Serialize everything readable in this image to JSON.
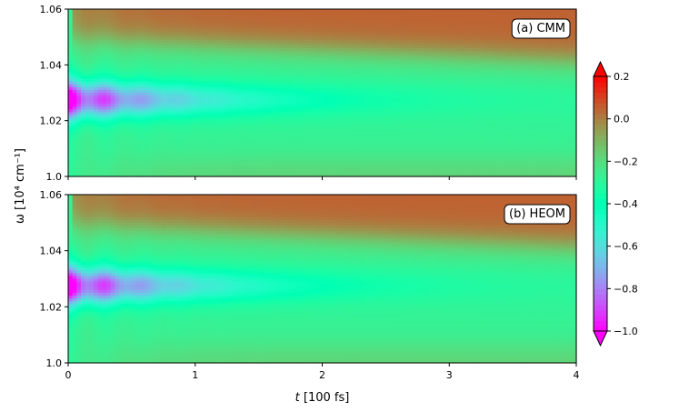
{
  "chart_data": {
    "type": "heatmap",
    "xlabel_var": "t",
    "xlabel_unit": " [100 fs]",
    "ylabel": "ω [10⁴ cm⁻¹]",
    "xlim": [
      0,
      4
    ],
    "ylim": [
      1.0,
      1.06
    ],
    "xticks": [
      0,
      1,
      2,
      3,
      4
    ],
    "xtick_labels": [
      "0",
      "1",
      "2",
      "3",
      "4"
    ],
    "yticks": [
      1.0,
      1.02,
      1.04,
      1.06
    ],
    "ytick_labels": [
      "1.0",
      "1.02",
      "1.04",
      "1.06"
    ],
    "colorbar": {
      "range": [
        -1.0,
        0.2
      ],
      "extend": "both",
      "colormap": "rainbow",
      "ticks": [
        -1.0,
        -0.8,
        -0.6,
        -0.4,
        -0.2,
        0.0,
        0.2
      ],
      "tick_labels": [
        "−1.0",
        "−0.8",
        "−0.6",
        "−0.4",
        "−0.2",
        "0.0",
        "0.2"
      ]
    },
    "panels": [
      {
        "label": "(a) CMM",
        "band_center_omega": 1.0275,
        "min_value": -1.0,
        "baseline_value": -0.28,
        "upper_region_value": 0.05
      },
      {
        "label": "(b) HEOM",
        "band_center_omega": 1.0275,
        "min_value": -1.0,
        "baseline_value": -0.28,
        "upper_region_value": 0.05
      }
    ]
  }
}
